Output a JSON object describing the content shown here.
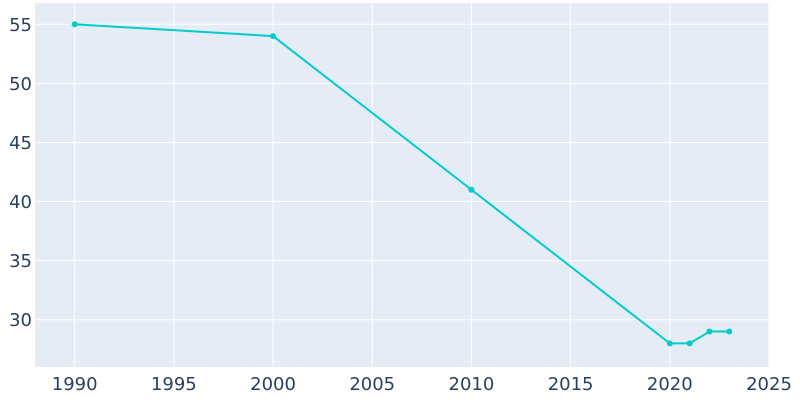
{
  "chart_data": {
    "type": "line",
    "title": "",
    "xlabel": "",
    "ylabel": "",
    "x": [
      1990,
      2000,
      2010,
      2020,
      2021,
      2022,
      2023
    ],
    "series": [
      {
        "values": [
          55,
          54,
          41,
          28,
          28,
          29,
          29
        ],
        "color": "#00cccc"
      }
    ],
    "xlim": [
      1988,
      2025
    ],
    "ylim": [
      26,
      56.8
    ],
    "xticks": [
      1990,
      1995,
      2000,
      2005,
      2010,
      2015,
      2020,
      2025
    ],
    "yticks": [
      30,
      35,
      40,
      45,
      50,
      55
    ],
    "grid": true,
    "legend": "none",
    "colors": {
      "plot_background": "#e5ecf6",
      "grid": "#ffffff",
      "tick_text": "#2a3f5f"
    }
  }
}
